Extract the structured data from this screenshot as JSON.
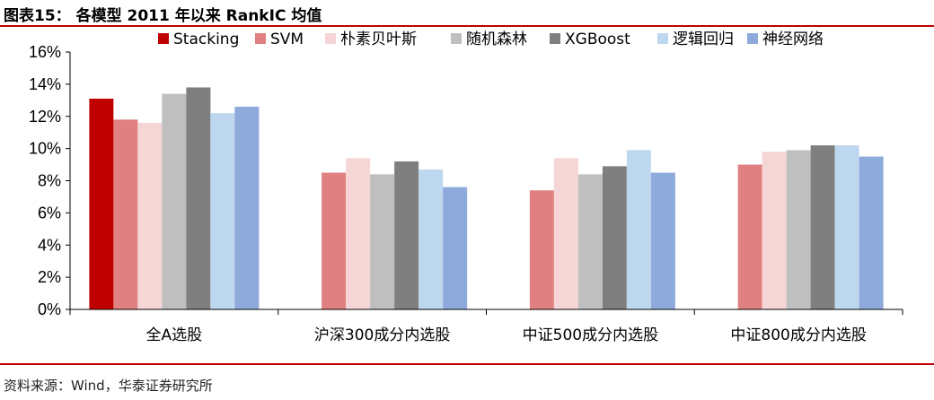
{
  "figure": {
    "title": "图表15：  各模型 2011 年以来 RankIC 均值",
    "source": "资料来源：Wind，华泰证券研究所"
  },
  "chart_data": {
    "type": "bar",
    "ylim": [
      0,
      16
    ],
    "yticks": [
      "0%",
      "2%",
      "4%",
      "6%",
      "8%",
      "10%",
      "12%",
      "14%",
      "16%"
    ],
    "grid": false,
    "legend_position": "top",
    "categories": [
      "全A选股",
      "沪深300成分内选股",
      "中证500成分内选股",
      "中证800成分内选股"
    ],
    "series": [
      {
        "name": "Stacking",
        "color": "#c00000",
        "values": [
          13.1,
          null,
          null,
          null
        ]
      },
      {
        "name": "SVM",
        "color": "#e08080",
        "values": [
          11.8,
          8.5,
          7.4,
          9.0
        ]
      },
      {
        "name": "朴素贝叶斯",
        "color": "#f5d5d5",
        "values": [
          11.6,
          9.4,
          9.4,
          9.8
        ]
      },
      {
        "name": "随机森林",
        "color": "#bfbfbf",
        "values": [
          13.4,
          8.4,
          8.4,
          9.9
        ]
      },
      {
        "name": "XGBoost",
        "color": "#7f7f7f",
        "values": [
          13.8,
          9.2,
          8.9,
          10.2
        ]
      },
      {
        "name": "逻辑回归",
        "color": "#bdd7ee",
        "values": [
          12.2,
          8.7,
          9.9,
          10.2
        ]
      },
      {
        "name": "神经网络",
        "color": "#8eaadb",
        "values": [
          12.6,
          7.6,
          8.5,
          9.5
        ]
      }
    ]
  }
}
